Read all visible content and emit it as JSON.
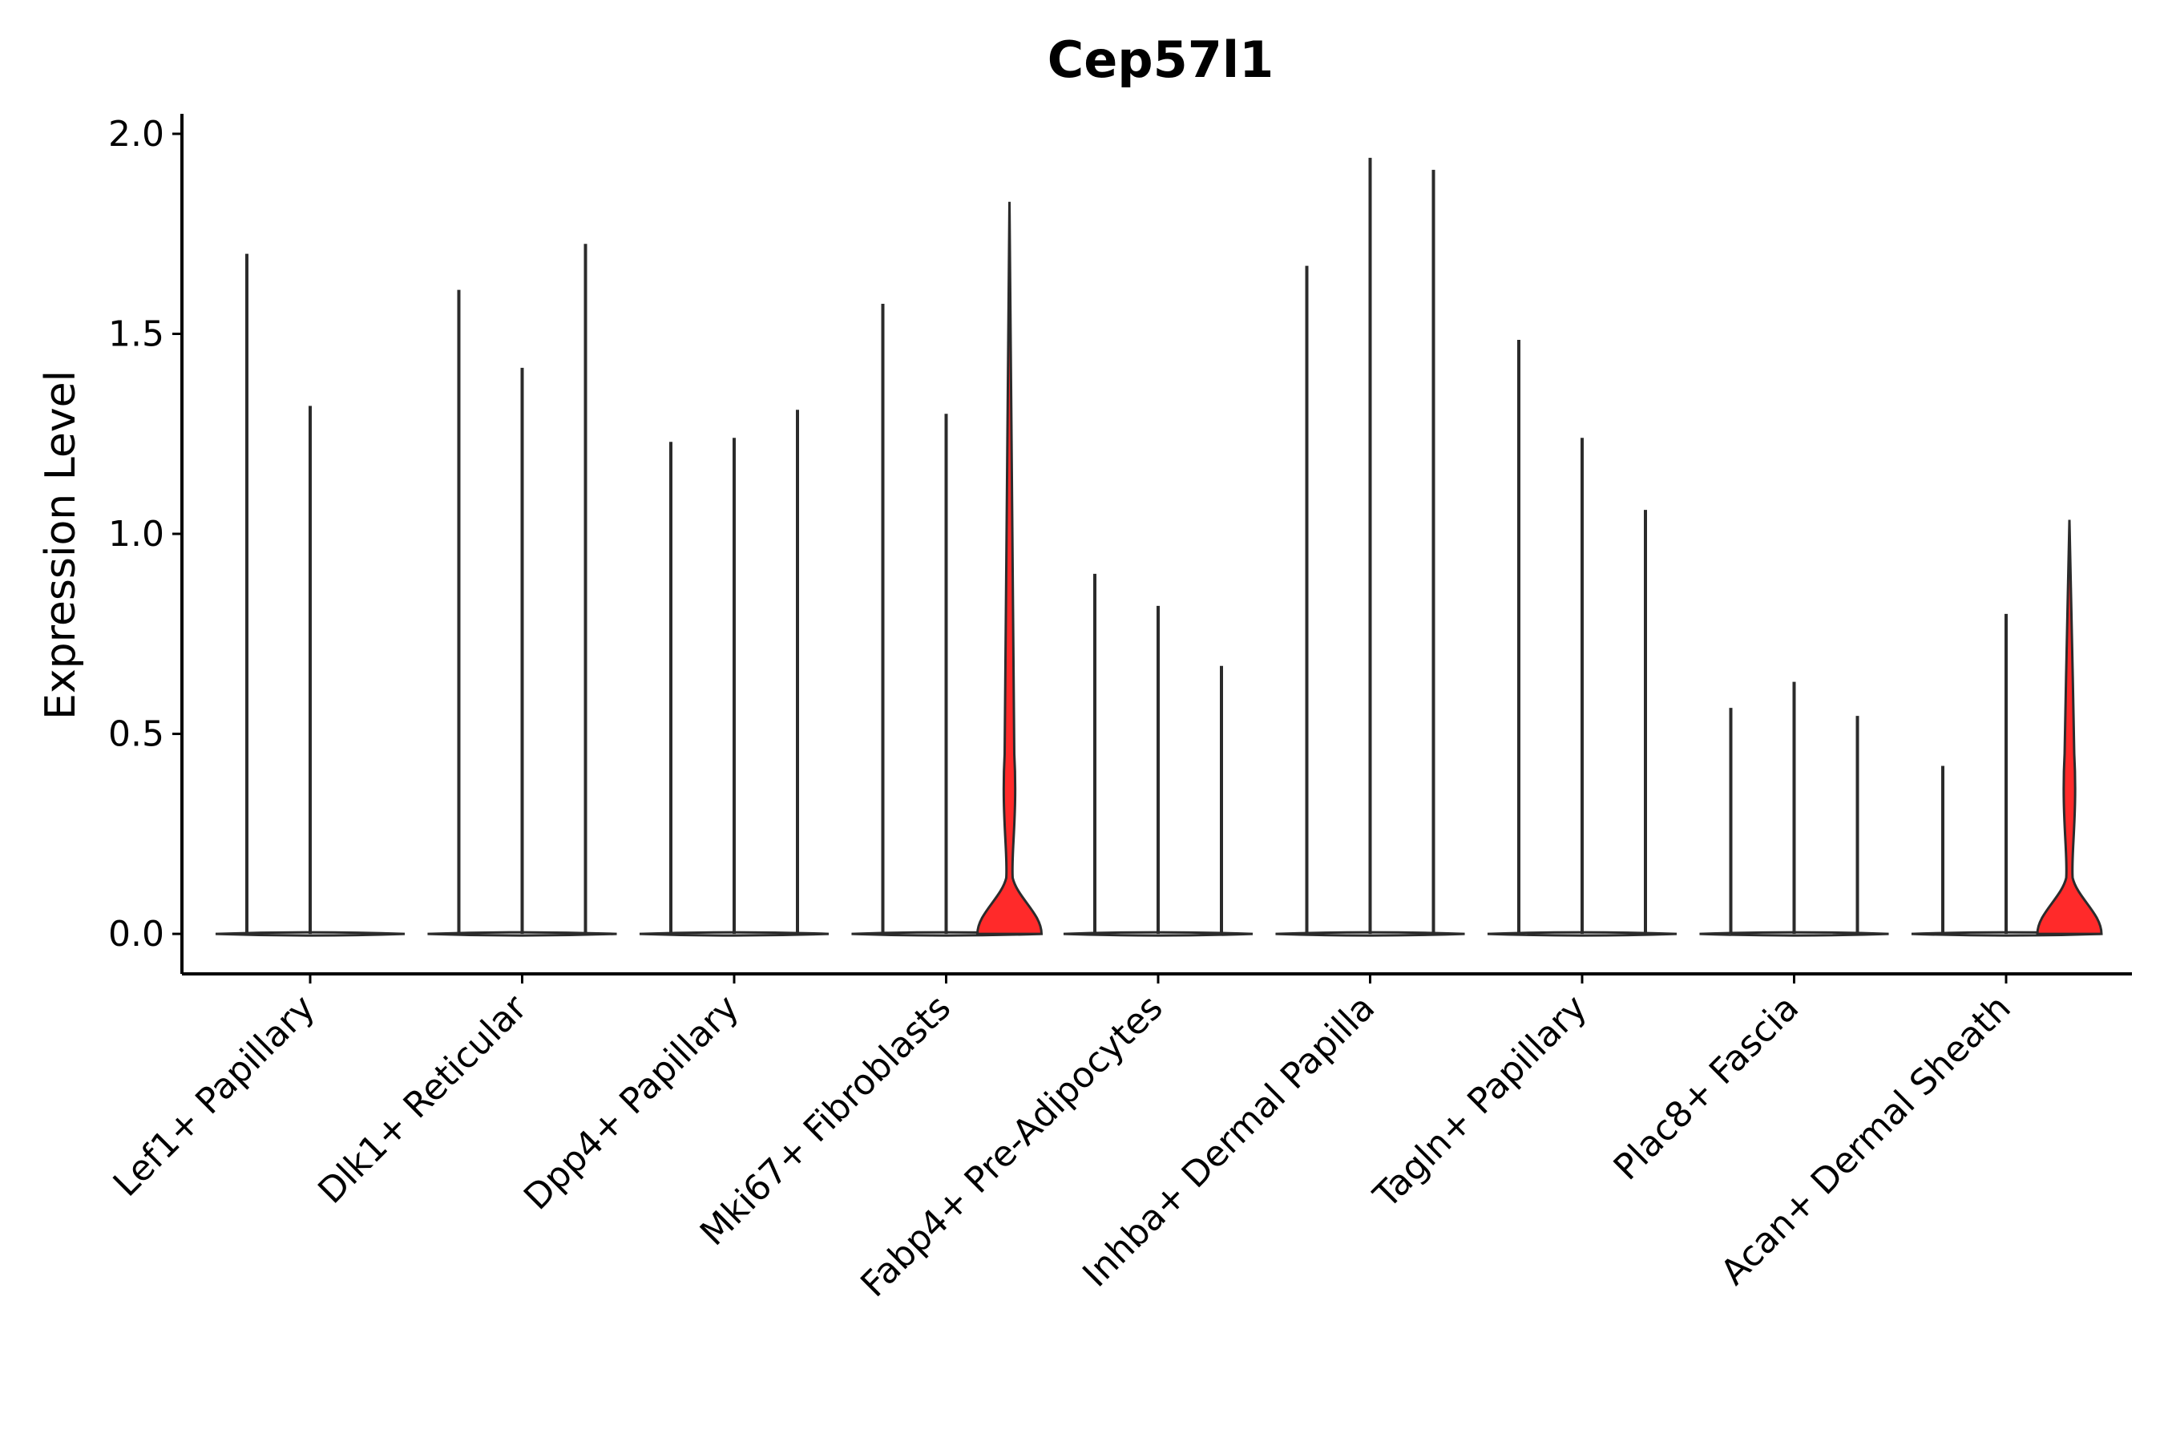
{
  "chart_data": {
    "type": "violin",
    "title": "Cep57l1",
    "xlabel": "",
    "ylabel": "Expression Level",
    "ylim": [
      -0.1,
      2.05
    ],
    "yticks": [
      0.0,
      0.5,
      1.0,
      1.5,
      2.0
    ],
    "ytick_labels": [
      "0.0",
      "0.5",
      "1.0",
      "1.5",
      "2.0"
    ],
    "grid": false,
    "legend": "none",
    "categories": [
      "Lef1+ Papillary",
      "Dlk1+ Reticular",
      "Dpp4+ Papillary",
      "Mki67+ Fibroblasts",
      "Fabp4+ Pre-Adipocytes",
      "Inhba+ Dermal Papilla",
      "Tagln+ Papillary",
      "Plac8+ Fascia",
      "Acan+ Dermal Sheath"
    ],
    "series": [
      {
        "name": "split-1",
        "max_values": [
          1.7,
          1.61,
          1.23,
          1.575,
          0.9,
          1.67,
          1.485,
          0.565,
          0.42
        ],
        "fill_color": "#ffffff"
      },
      {
        "name": "split-2",
        "max_values": [
          1.32,
          1.415,
          1.24,
          1.3,
          0.82,
          1.94,
          1.24,
          0.63,
          0.8
        ],
        "fill_color": "#ffffff"
      },
      {
        "name": "split-3",
        "max_values": [
          null,
          1.725,
          1.31,
          1.83,
          0.67,
          1.91,
          1.06,
          0.545,
          1.035
        ],
        "fill_color": "#ff2a2a"
      }
    ],
    "highlighted_violins": [
      {
        "category": "Mki67+ Fibroblasts",
        "series": "split-3",
        "color": "#ff2a2a"
      },
      {
        "category": "Acan+ Dermal Sheath",
        "series": "split-3",
        "color": "#ff2a2a"
      }
    ],
    "colors": {
      "highlight": "#ff2a2a",
      "outline": "#2b2b2b",
      "axis": "#000000"
    }
  }
}
